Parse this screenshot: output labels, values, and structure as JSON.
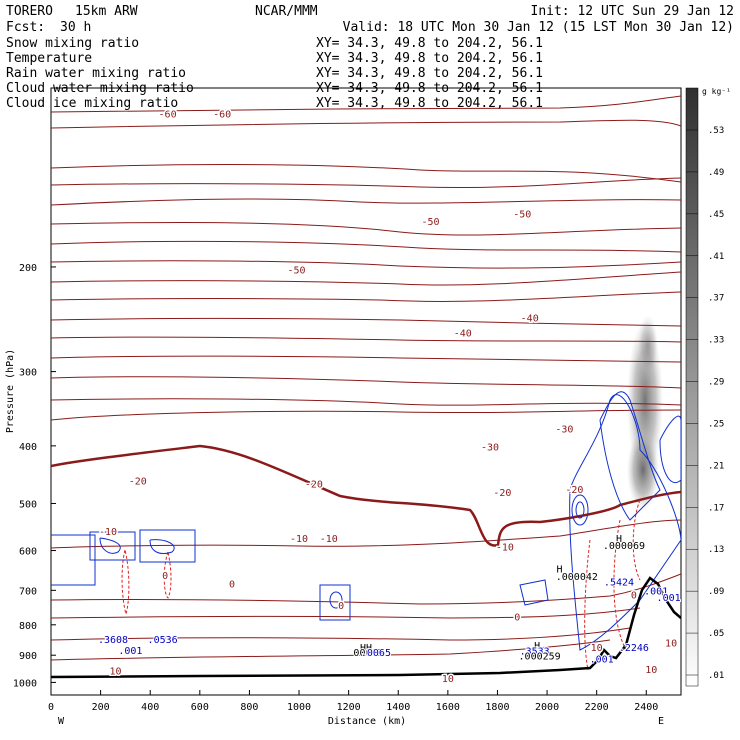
{
  "header": {
    "model": "TORERO",
    "res": "15km ARW",
    "org": "NCAR/MMM",
    "init": "Init: 12 UTC Sun 29 Jan 12",
    "fcst_label": "Fcst:",
    "fcst_value": "30 h",
    "valid": "Valid: 18 UTC Mon 30 Jan 12 (15 LST Mon 30 Jan 12)"
  },
  "fields": [
    {
      "name": "Snow mixing ratio",
      "xy": "XY=  34.3, 49.8 to 204.2, 56.1",
      "color": "#000000"
    },
    {
      "name": "Temperature",
      "xy": "XY=  34.3, 49.8 to 204.2, 56.1",
      "color": "#a00000"
    },
    {
      "name": "Rain water mixing ratio",
      "xy": "XY=  34.3, 49.8 to 204.2, 56.1",
      "color": "#d01010"
    },
    {
      "name": "Cloud water mixing ratio",
      "xy": "XY=  34.3, 49.8 to 204.2, 56.1",
      "color": "#0000c0"
    },
    {
      "name": "Cloud ice mixing ratio",
      "xy": "XY=  34.3, 49.8 to 204.2, 56.1",
      "color": "#000000"
    }
  ],
  "colorbar": {
    "unit": "g kg⁻¹",
    "labels": [
      ".53",
      ".49",
      ".45",
      ".41",
      ".37",
      ".33",
      ".29",
      ".25",
      ".21",
      ".17",
      ".13",
      ".09",
      ".05",
      ".01"
    ]
  },
  "chart_data": {
    "type": "contour",
    "xlabel": "Distance (km)",
    "ylabel": "Pressure (hPa)",
    "xlim": [
      0,
      2540
    ],
    "ylim": [
      1050,
      100
    ],
    "y_scale": "log",
    "x_ticks": [
      0,
      200,
      400,
      600,
      800,
      1000,
      1200,
      1400,
      1600,
      1800,
      2000,
      2200,
      2400
    ],
    "y_ticks": [
      200,
      300,
      400,
      500,
      600,
      700,
      800,
      900,
      1000
    ],
    "x_end_labels": {
      "left": "W",
      "right": "E"
    },
    "temperature_contour_labels": [
      {
        "x": 470,
        "p": 112,
        "text": "-60"
      },
      {
        "x": 690,
        "p": 112,
        "text": "-60"
      },
      {
        "x": 1530,
        "p": 170,
        "text": "-50"
      },
      {
        "x": 1900,
        "p": 165,
        "text": "-50"
      },
      {
        "x": 990,
        "p": 205,
        "text": "-50"
      },
      {
        "x": 1660,
        "p": 262,
        "text": "-40"
      },
      {
        "x": 1930,
        "p": 247,
        "text": "-40"
      },
      {
        "x": 2070,
        "p": 380,
        "text": "-30"
      },
      {
        "x": 1770,
        "p": 407,
        "text": "-30"
      },
      {
        "x": 350,
        "p": 465,
        "text": "-20"
      },
      {
        "x": 1060,
        "p": 470,
        "text": "-20"
      },
      {
        "x": 1820,
        "p": 486,
        "text": "-20"
      },
      {
        "x": 2110,
        "p": 480,
        "text": "-20"
      },
      {
        "x": 230,
        "p": 565,
        "text": "-10"
      },
      {
        "x": 1000,
        "p": 580,
        "text": "-10"
      },
      {
        "x": 1120,
        "p": 580,
        "text": "-10"
      },
      {
        "x": 1830,
        "p": 600,
        "text": "-10"
      },
      {
        "x": 460,
        "p": 670,
        "text": "0"
      },
      {
        "x": 730,
        "p": 693,
        "text": "0"
      },
      {
        "x": 1170,
        "p": 752,
        "text": "0"
      },
      {
        "x": 1880,
        "p": 787,
        "text": "0"
      },
      {
        "x": 2350,
        "p": 722,
        "text": "0"
      },
      {
        "x": 2200,
        "p": 885,
        "text": "10"
      },
      {
        "x": 2500,
        "p": 870,
        "text": "10"
      },
      {
        "x": 260,
        "p": 970,
        "text": "10"
      },
      {
        "x": 1600,
        "p": 998,
        "text": "10"
      },
      {
        "x": 2420,
        "p": 965,
        "text": "10"
      }
    ],
    "other_labels": [
      {
        "x": 2290,
        "p": 580,
        "text": "H"
      },
      {
        "x": 2310,
        "p": 596,
        "text": ".000069"
      },
      {
        "x": 2050,
        "p": 653,
        "text": "H"
      },
      {
        "x": 2120,
        "p": 672,
        "text": ".000042"
      },
      {
        "x": 2290,
        "p": 687,
        "text": ".5424"
      },
      {
        "x": 2440,
        "p": 712,
        "text": ".001"
      },
      {
        "x": 2490,
        "p": 730,
        "text": ".001"
      },
      {
        "x": 250,
        "p": 858,
        "text": ".3608"
      },
      {
        "x": 450,
        "p": 858,
        "text": ".0536"
      },
      {
        "x": 320,
        "p": 895,
        "text": ".001"
      },
      {
        "x": 1270,
        "p": 885,
        "text": "HH"
      },
      {
        "x": 1280,
        "p": 902,
        "text": "00005"
      },
      {
        "x": 1310,
        "p": 902,
        "text": ".0065"
      },
      {
        "x": 1960,
        "p": 878,
        "text": "H"
      },
      {
        "x": 1950,
        "p": 897,
        "text": ".3533"
      },
      {
        "x": 1970,
        "p": 915,
        "text": ".000259"
      },
      {
        "x": 2220,
        "p": 925,
        "text": ".001"
      },
      {
        "x": 2350,
        "p": 885,
        "text": ".2246"
      }
    ],
    "terrain_distance_km": [
      0,
      200,
      400,
      600,
      800,
      1000,
      1200,
      1400,
      1600,
      1800,
      2000,
      2100,
      2200,
      2250,
      2300,
      2350,
      2400,
      2450,
      2500,
      2540
    ],
    "terrain_pressure_hPa": [
      1025,
      1025,
      1024,
      1024,
      1023,
      1022,
      1021,
      1019,
      1016,
      1010,
      1002,
      995,
      985,
      962,
      990,
      970,
      920,
      855,
      905,
      935
    ]
  }
}
